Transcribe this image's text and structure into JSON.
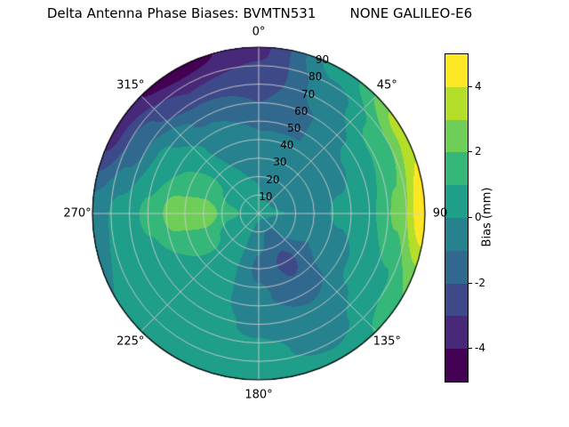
{
  "title": "Delta Antenna Phase Biases: BVMTN531        NONE GALILEO-E6",
  "chart_data": {
    "type": "polar_contour",
    "title": "Delta Antenna Phase Biases: BVMTN531        NONE GALILEO-E6",
    "station": "BVMTN531",
    "signal": "NONE GALILEO-E6",
    "angular_ticks": [
      {
        "angle": 0,
        "label": "0°"
      },
      {
        "angle": 45,
        "label": "45°"
      },
      {
        "angle": 90,
        "label": "90"
      },
      {
        "angle": 135,
        "label": "135°"
      },
      {
        "angle": 180,
        "label": "180°"
      },
      {
        "angle": 225,
        "label": "225°"
      },
      {
        "angle": 270,
        "label": "270°"
      },
      {
        "angle": 315,
        "label": "315°"
      }
    ],
    "radial_ticks": [
      {
        "value": 10,
        "label": "10"
      },
      {
        "value": 20,
        "label": "20"
      },
      {
        "value": 30,
        "label": "30"
      },
      {
        "value": 40,
        "label": "40"
      },
      {
        "value": 50,
        "label": "50"
      },
      {
        "value": 60,
        "label": "60"
      },
      {
        "value": 70,
        "label": "70"
      },
      {
        "value": 80,
        "label": "80"
      },
      {
        "value": 90,
        "label": "90"
      }
    ],
    "radial_label_angle_deg": 22.5,
    "colorbar": {
      "label": "Bias (mm)",
      "min": -5,
      "max": 5,
      "ticks": [
        {
          "value": 4,
          "label": "4"
        },
        {
          "value": 2,
          "label": "2"
        },
        {
          "value": 0,
          "label": "0"
        },
        {
          "value": -2,
          "label": "-2"
        },
        {
          "value": -4,
          "label": "-4"
        }
      ]
    },
    "levels": [
      -5,
      -4,
      -3,
      -2,
      -1,
      0,
      1,
      2,
      3,
      4,
      5
    ],
    "band_colors": [
      "#440154",
      "#482878",
      "#3e4989",
      "#31688e",
      "#26828e",
      "#1f9e89",
      "#35b779",
      "#6ece58",
      "#b5de2b",
      "#fde725"
    ],
    "grid_color": "#cccccc",
    "field": {
      "units": "mm",
      "azimuth_deg": [
        0,
        30,
        60,
        90,
        120,
        150,
        180,
        210,
        240,
        270,
        300,
        330,
        360
      ],
      "zenith_deg": [
        0,
        15,
        30,
        45,
        60,
        75,
        90
      ],
      "bias_mm": [
        [
          0.2,
          0.0,
          -0.5,
          -1.0,
          -2.0,
          -2.8,
          -3.2
        ],
        [
          0.2,
          -0.2,
          -0.8,
          -1.0,
          -1.0,
          -0.5,
          0.5
        ],
        [
          0.2,
          -0.2,
          -0.5,
          -0.3,
          0.3,
          1.5,
          3.5
        ],
        [
          0.2,
          0.0,
          -0.3,
          0.2,
          0.8,
          2.2,
          5.0
        ],
        [
          0.2,
          -0.5,
          -1.0,
          -0.5,
          0.2,
          0.8,
          2.0
        ],
        [
          0.2,
          -1.5,
          -2.3,
          -1.8,
          -0.8,
          -0.3,
          0.2
        ],
        [
          0.2,
          -0.8,
          -1.2,
          -0.8,
          -0.2,
          0.2,
          0.3
        ],
        [
          0.2,
          0.2,
          0.3,
          0.4,
          0.4,
          0.3,
          0.2
        ],
        [
          0.2,
          0.6,
          1.2,
          1.0,
          0.6,
          0.3,
          0.0
        ],
        [
          0.2,
          1.2,
          2.8,
          2.6,
          1.2,
          0.3,
          -0.5
        ],
        [
          0.2,
          0.8,
          1.2,
          1.0,
          0.2,
          -1.5,
          -3.5
        ],
        [
          0.2,
          0.2,
          0.0,
          -0.3,
          -1.2,
          -3.0,
          -4.6
        ],
        [
          0.2,
          0.0,
          -0.5,
          -1.0,
          -2.0,
          -2.8,
          -3.2
        ]
      ]
    }
  }
}
